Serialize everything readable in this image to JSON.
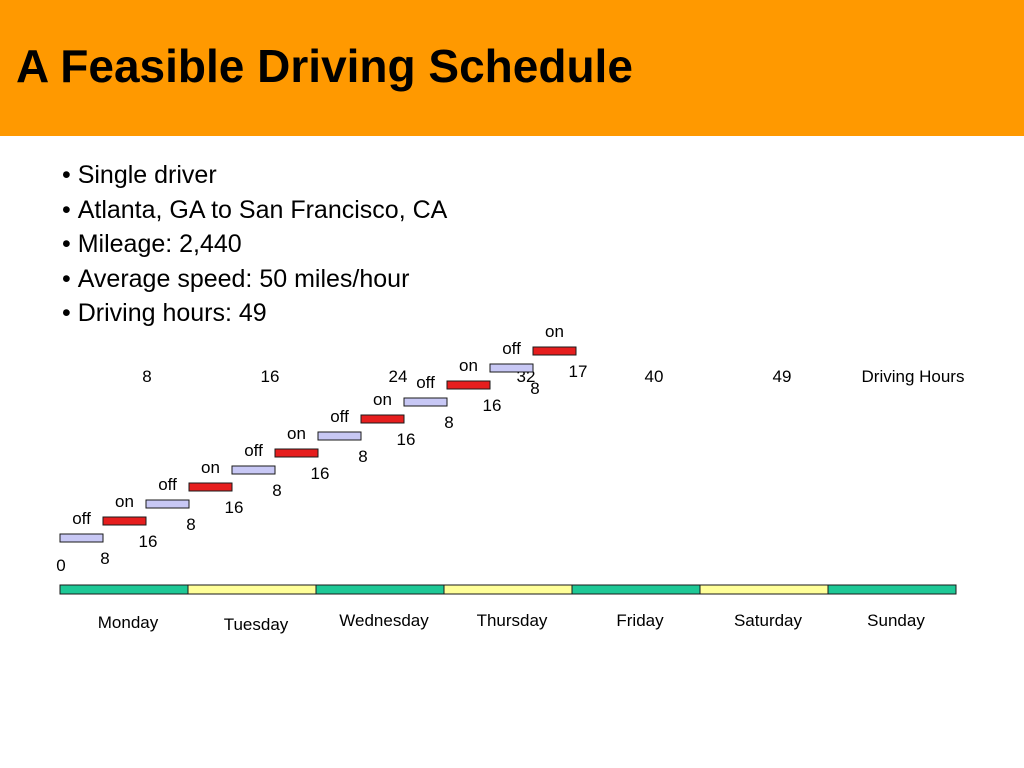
{
  "title": "A Feasible Driving Schedule",
  "colors": {
    "header_background": "#ff9900",
    "on_segment": "#e61e1e",
    "off_segment": "#c8c8f5",
    "day_green": "#1ec896",
    "day_yellow": "#ffff99"
  },
  "bullets": [
    "Single driver",
    "Atlanta, GA to San Francisco, CA",
    "Mileage: 2,440",
    "Average speed: 50 miles/hour",
    "Driving hours: 49"
  ],
  "driving_hours_axis": {
    "label": "Driving Hours",
    "ticks": [
      "8",
      "16",
      "24",
      "32",
      "40",
      "49"
    ]
  },
  "schedule_segments": [
    {
      "state": "off",
      "start": "0",
      "end": "8"
    },
    {
      "state": "on",
      "start": "8",
      "end": "16"
    },
    {
      "state": "off",
      "start": "16",
      "end": "8"
    },
    {
      "state": "on",
      "start": "8",
      "end": "16"
    },
    {
      "state": "off",
      "start": "16",
      "end": "8"
    },
    {
      "state": "on",
      "start": "8",
      "end": "16"
    },
    {
      "state": "off",
      "start": "16",
      "end": "8"
    },
    {
      "state": "on",
      "start": "8",
      "end": "16"
    },
    {
      "state": "off",
      "start": "16",
      "end": "8"
    },
    {
      "state": "on",
      "start": "8",
      "end": "16"
    },
    {
      "state": "off",
      "start": "16",
      "end": "8"
    },
    {
      "state": "on",
      "start": "8",
      "end": "17"
    }
  ],
  "days": [
    {
      "name": "Monday",
      "color": "green"
    },
    {
      "name": "Tuesday",
      "color": "yellow"
    },
    {
      "name": "Wednesday",
      "color": "green"
    },
    {
      "name": "Thursday",
      "color": "yellow"
    },
    {
      "name": "Friday",
      "color": "green"
    },
    {
      "name": "Saturday",
      "color": "yellow"
    },
    {
      "name": "Sunday",
      "color": "green"
    }
  ]
}
